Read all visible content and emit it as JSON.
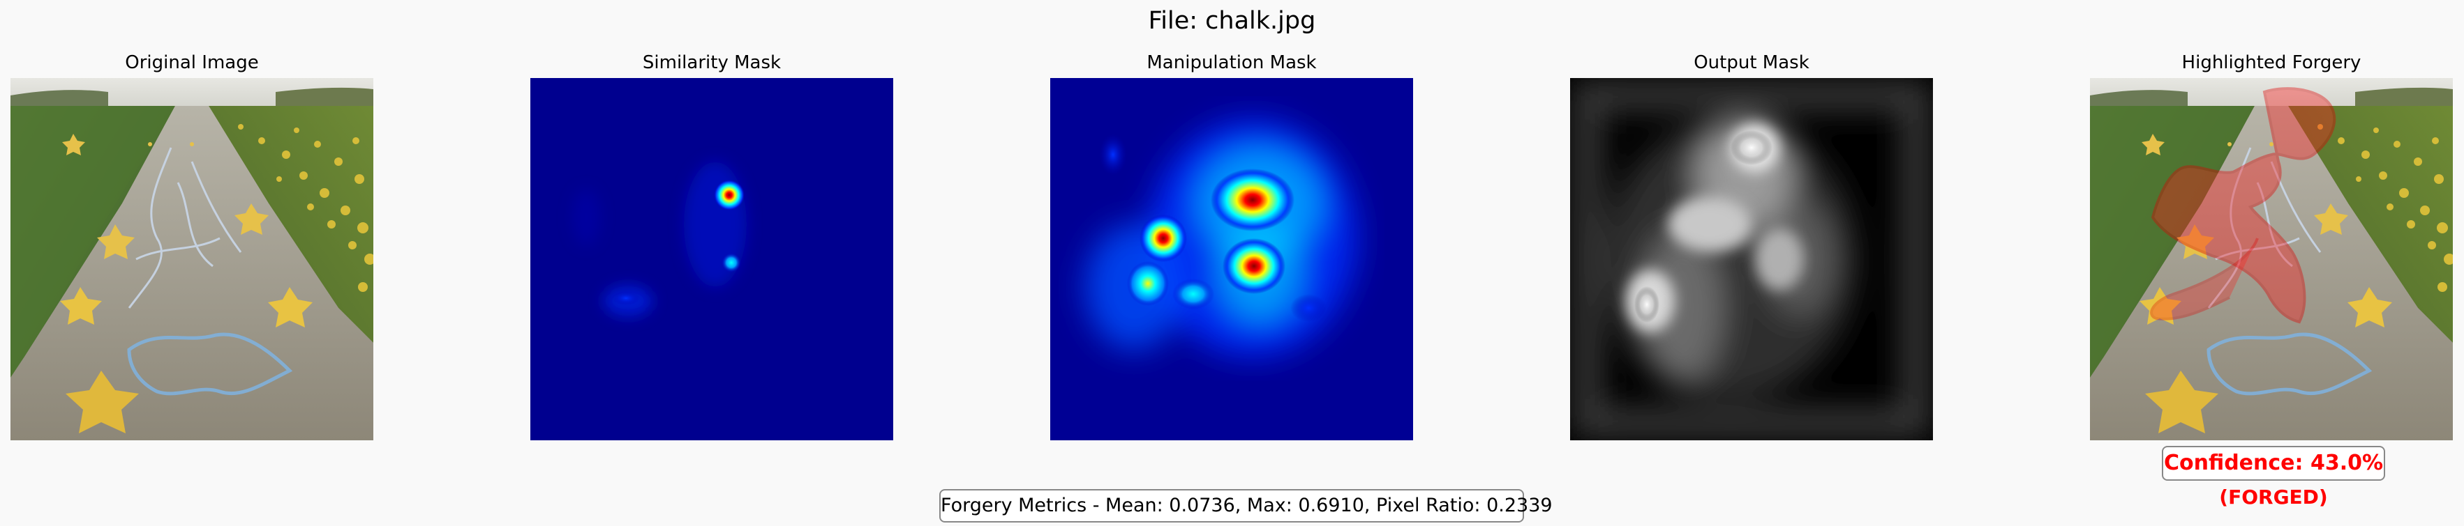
{
  "title": "File: chalk.jpg",
  "panels": [
    {
      "title": "Original Image"
    },
    {
      "title": "Similarity Mask"
    },
    {
      "title": "Manipulation Mask"
    },
    {
      "title": "Output Mask"
    },
    {
      "title": "Highlighted Forgery"
    }
  ],
  "result": {
    "confidence_label": "Confidence: 43.0%",
    "verdict": "(FORGED)",
    "highlight_color": "#ff0000"
  },
  "metrics_text": "Forgery Metrics - Mean: 0.0736, Max: 0.6910, Pixel Ratio: 0.2339"
}
